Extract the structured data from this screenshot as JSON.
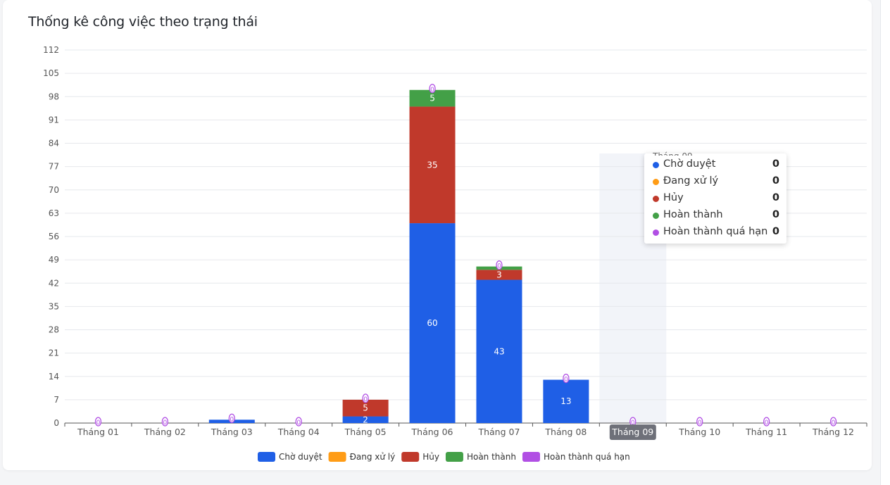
{
  "card_title": "Thống kê công việc theo trạng thái",
  "chart_data": {
    "type": "bar",
    "stacked": true,
    "categories": [
      "Tháng 01",
      "Tháng 02",
      "Tháng 03",
      "Tháng 04",
      "Tháng 05",
      "Tháng 06",
      "Tháng 07",
      "Tháng 08",
      "Tháng 09",
      "Tháng 10",
      "Tháng 11",
      "Tháng 12"
    ],
    "series": [
      {
        "name": "Chờ duyệt",
        "color": "#1f5fe6",
        "values": [
          0,
          0,
          1,
          0,
          2,
          60,
          43,
          13,
          0,
          0,
          0,
          0
        ]
      },
      {
        "name": "Đang xử lý",
        "color": "#ff9c16",
        "values": [
          0,
          0,
          0,
          0,
          0,
          0,
          0,
          0,
          0,
          0,
          0,
          0
        ]
      },
      {
        "name": "Hủy",
        "color": "#c0392b",
        "values": [
          0,
          0,
          0,
          0,
          5,
          35,
          3,
          0,
          0,
          0,
          0,
          0
        ]
      },
      {
        "name": "Hoàn thành",
        "color": "#43a047",
        "values": [
          0,
          0,
          0,
          0,
          0,
          5,
          1,
          0,
          0,
          0,
          0,
          0
        ]
      },
      {
        "name": "Hoàn thành quá hạn",
        "color": "#b14fe4",
        "values": [
          0,
          0,
          0,
          0,
          0,
          0,
          0,
          0,
          0,
          0,
          0,
          0
        ]
      }
    ],
    "y_ticks": [
      0,
      7,
      14,
      21,
      28,
      35,
      42,
      49,
      56,
      63,
      70,
      77,
      84,
      91,
      98,
      105,
      112
    ],
    "ylim": [
      0,
      112
    ],
    "grid": true,
    "legend_position": "bottom",
    "highlighted_category": "Tháng 09"
  },
  "tooltip": {
    "title": "Tháng 09",
    "rows": [
      {
        "label": "Chờ duyệt",
        "value": "0",
        "color": "#1f5fe6"
      },
      {
        "label": "Đang xử lý",
        "value": "0",
        "color": "#ff9c16"
      },
      {
        "label": "Hủy",
        "value": "0",
        "color": "#c0392b"
      },
      {
        "label": "Hoàn thành",
        "value": "0",
        "color": "#43a047"
      },
      {
        "label": "Hoàn thành quá hạn",
        "value": "0",
        "color": "#b14fe4"
      }
    ]
  }
}
